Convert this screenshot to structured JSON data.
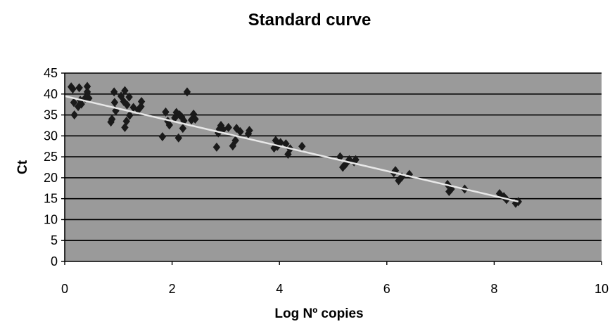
{
  "chart_data": {
    "type": "scatter",
    "title": "Standard curve",
    "xlabel": "Log Nº copies",
    "ylabel": "Ct",
    "xlim": [
      0,
      10
    ],
    "ylim": [
      0,
      45
    ],
    "x_ticks": [
      0,
      2,
      4,
      6,
      8,
      10
    ],
    "y_ticks": [
      0,
      5,
      10,
      15,
      20,
      25,
      30,
      35,
      40,
      45
    ],
    "grid": "horizontal",
    "legend": "none",
    "plot_background": "#9a9a9a",
    "gridline_color": "#000000",
    "marker": "diamond",
    "marker_color": "#1a1a1a",
    "trendline_color": "#e8e8e8",
    "trendline": {
      "type": "linear",
      "x": [
        0,
        8.45
      ],
      "y": [
        39.5,
        14.3
      ]
    },
    "series": [
      {
        "points": [
          [
            0.12,
            41.7
          ],
          [
            0.15,
            41.2
          ],
          [
            0.17,
            38.0
          ],
          [
            0.18,
            35.0
          ],
          [
            0.25,
            37.0
          ],
          [
            0.27,
            41.5
          ],
          [
            0.29,
            38.5
          ],
          [
            0.31,
            37.6
          ],
          [
            0.38,
            39.0
          ],
          [
            0.42,
            41.8
          ],
          [
            0.42,
            40.5
          ],
          [
            0.45,
            39.0
          ],
          [
            0.86,
            33.3
          ],
          [
            0.88,
            34.0
          ],
          [
            0.92,
            40.5
          ],
          [
            0.93,
            38.0
          ],
          [
            0.95,
            36.0
          ],
          [
            1.05,
            39.5
          ],
          [
            1.1,
            38.2
          ],
          [
            1.12,
            40.8
          ],
          [
            1.12,
            32.0
          ],
          [
            1.15,
            33.5
          ],
          [
            1.16,
            37.4
          ],
          [
            1.2,
            39.3
          ],
          [
            1.21,
            34.9
          ],
          [
            1.28,
            36.8
          ],
          [
            1.37,
            36.2
          ],
          [
            1.42,
            37.0
          ],
          [
            1.43,
            38.2
          ],
          [
            1.82,
            29.8
          ],
          [
            1.88,
            35.7
          ],
          [
            1.92,
            33.5
          ],
          [
            1.95,
            32.6
          ],
          [
            2.05,
            34.3
          ],
          [
            2.08,
            35.6
          ],
          [
            2.12,
            29.5
          ],
          [
            2.14,
            35.0
          ],
          [
            2.18,
            34.5
          ],
          [
            2.2,
            31.8
          ],
          [
            2.22,
            33.6
          ],
          [
            2.28,
            40.5
          ],
          [
            2.36,
            33.8
          ],
          [
            2.4,
            35.2
          ],
          [
            2.43,
            34.0
          ],
          [
            2.83,
            27.3
          ],
          [
            2.86,
            30.7
          ],
          [
            2.88,
            31.6
          ],
          [
            2.91,
            32.5
          ],
          [
            2.95,
            31.5
          ],
          [
            3.05,
            32.0
          ],
          [
            3.13,
            27.6
          ],
          [
            3.18,
            28.9
          ],
          [
            3.2,
            31.8
          ],
          [
            3.27,
            31.0
          ],
          [
            3.42,
            30.5
          ],
          [
            3.44,
            31.3
          ],
          [
            3.9,
            27.1
          ],
          [
            3.93,
            28.9
          ],
          [
            3.96,
            27.5
          ],
          [
            4.02,
            28.4
          ],
          [
            4.12,
            28.1
          ],
          [
            4.16,
            25.6
          ],
          [
            4.2,
            26.9
          ],
          [
            4.42,
            27.5
          ],
          [
            5.13,
            25.0
          ],
          [
            5.18,
            22.5
          ],
          [
            5.23,
            23.2
          ],
          [
            5.3,
            24.3
          ],
          [
            5.39,
            23.8
          ],
          [
            5.42,
            24.3
          ],
          [
            6.13,
            21.2
          ],
          [
            6.16,
            21.7
          ],
          [
            6.22,
            19.3
          ],
          [
            6.28,
            20.2
          ],
          [
            6.42,
            20.8
          ],
          [
            7.13,
            18.4
          ],
          [
            7.16,
            16.7
          ],
          [
            7.2,
            17.3
          ],
          [
            7.45,
            17.3
          ],
          [
            8.1,
            16.2
          ],
          [
            8.18,
            15.5
          ],
          [
            8.23,
            14.8
          ],
          [
            8.4,
            13.9
          ],
          [
            8.45,
            14.3
          ]
        ]
      }
    ]
  }
}
